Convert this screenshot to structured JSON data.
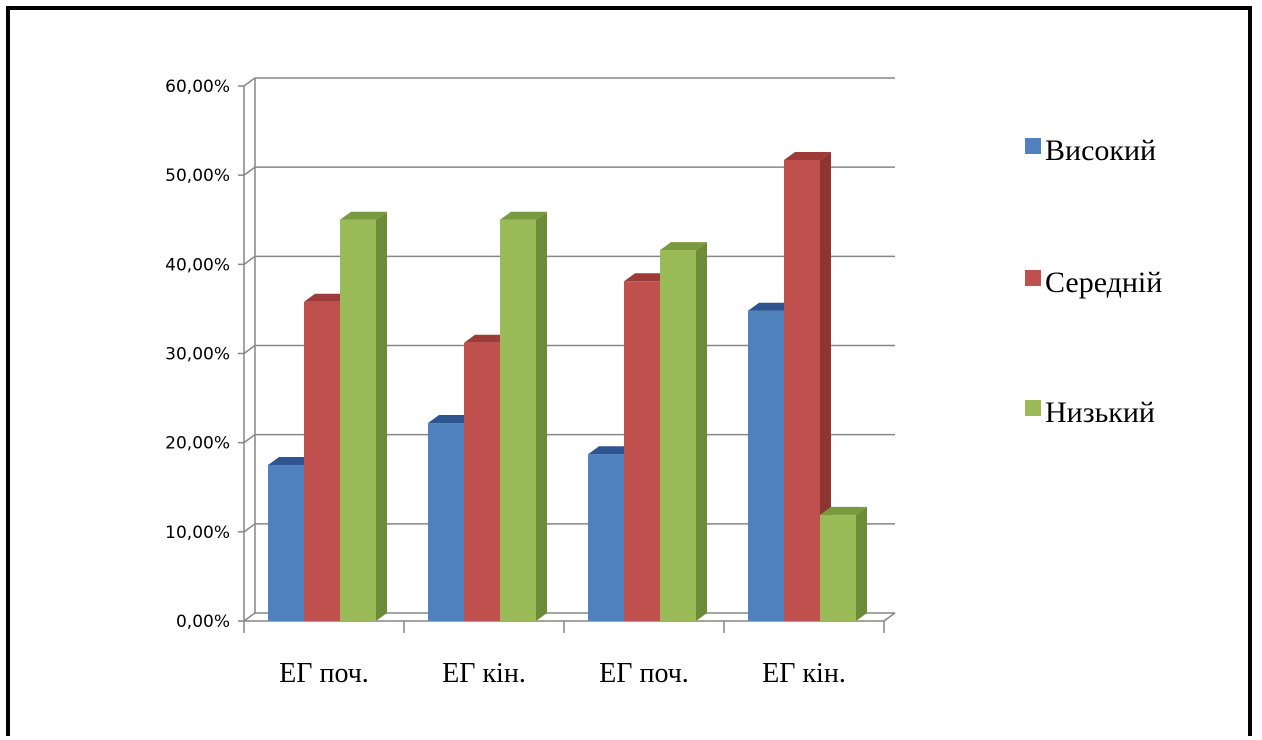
{
  "chart_data": {
    "type": "bar",
    "style": "3d-clustered-column",
    "title": "",
    "xlabel": "",
    "ylabel": "",
    "categories": [
      "ЕГ поч.",
      "ЕГ кін.",
      "ЕГ поч.",
      "ЕГ кін."
    ],
    "ylim": [
      0,
      60
    ],
    "y_ticks": [
      "0,00%",
      "10,00%",
      "20,00%",
      "30,00%",
      "40,00%",
      "50,00%",
      "60,00%"
    ],
    "grid": true,
    "legend_position": "right",
    "series": [
      {
        "name": "Високий",
        "values": [
          17.5,
          22.2,
          18.7,
          34.8
        ],
        "color": "#4F81BD",
        "side_color": "#3A6194",
        "top_color": "#2E5590"
      },
      {
        "name": "Середній",
        "values": [
          35.8,
          31.2,
          38.1,
          51.7
        ],
        "color": "#C0504D",
        "side_color": "#8E3533",
        "top_color": "#9E3A37"
      },
      {
        "name": "Низький",
        "values": [
          45.0,
          45.0,
          41.6,
          11.9
        ],
        "color": "#9BBB59",
        "side_color": "#6E8C37",
        "top_color": "#7A9A3E"
      }
    ]
  }
}
